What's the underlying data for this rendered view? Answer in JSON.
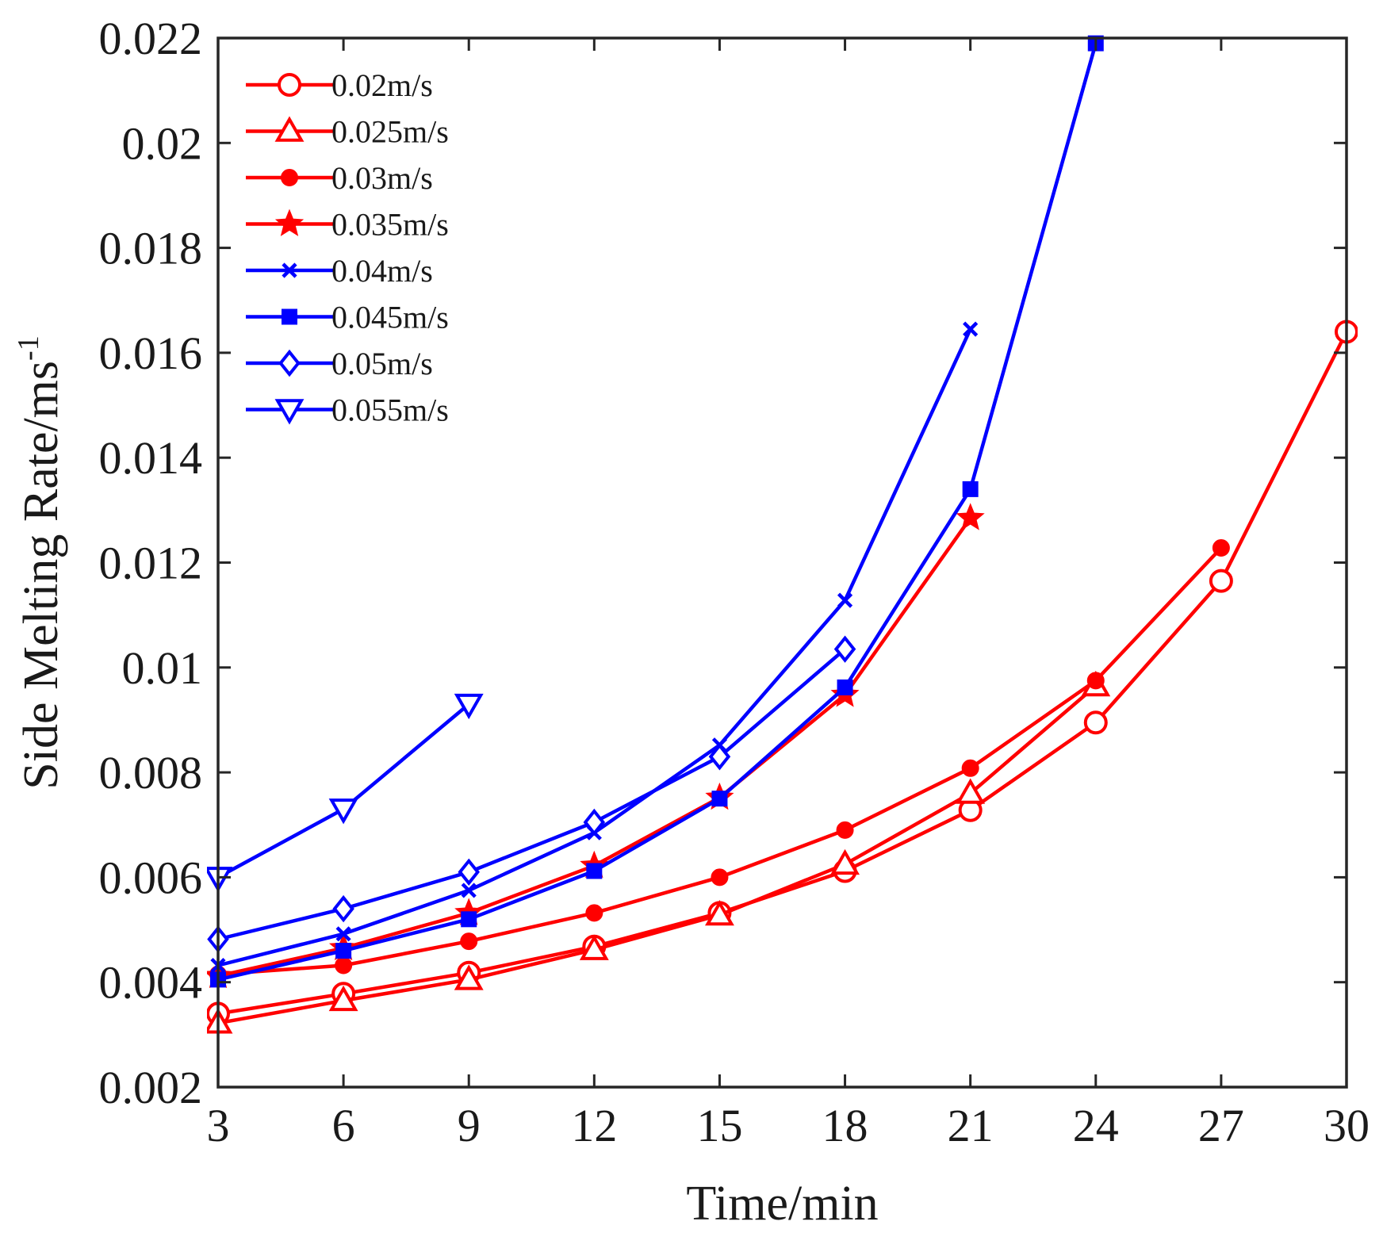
{
  "chart_data": {
    "type": "line",
    "title": "",
    "xlabel": "Time/min",
    "ylabel": "Side Melting Rate/ms",
    "ylabel_superscript": "-1",
    "xlim": [
      3,
      30
    ],
    "ylim": [
      0.002,
      0.022
    ],
    "xticks": [
      "3",
      "6",
      "9",
      "12",
      "15",
      "18",
      "21",
      "24",
      "27",
      "30"
    ],
    "xtick_values": [
      3,
      6,
      9,
      12,
      15,
      18,
      21,
      24,
      27,
      30
    ],
    "yticks": [
      "0.002",
      "0.004",
      "0.006",
      "0.008",
      "0.01",
      "0.012",
      "0.014",
      "0.016",
      "0.018",
      "0.02",
      "0.022"
    ],
    "ytick_values": [
      0.002,
      0.004,
      0.006,
      0.008,
      0.01,
      0.012,
      0.014,
      0.016,
      0.018,
      0.02,
      0.022
    ],
    "legend_position": "top-left",
    "series": [
      {
        "name": "0.02m/s",
        "color": "#ff0000",
        "marker": "circle-open",
        "x": [
          3,
          6,
          9,
          12,
          15,
          18,
          21,
          24,
          27,
          30
        ],
        "y": [
          0.0034,
          0.00378,
          0.00418,
          0.00468,
          0.00532,
          0.00612,
          0.00728,
          0.00895,
          0.01165,
          0.0164
        ]
      },
      {
        "name": "0.025m/s",
        "color": "#ff0000",
        "marker": "triangle-up-open",
        "x": [
          3,
          6,
          9,
          12,
          15,
          18,
          21,
          24
        ],
        "y": [
          0.00322,
          0.00365,
          0.00405,
          0.00462,
          0.00528,
          0.00625,
          0.0076,
          0.00965
        ]
      },
      {
        "name": "0.03m/s",
        "color": "#ff0000",
        "marker": "circle-filled",
        "x": [
          3,
          6,
          9,
          12,
          15,
          18,
          21,
          24,
          27
        ],
        "y": [
          0.00415,
          0.00432,
          0.00478,
          0.00532,
          0.006,
          0.0069,
          0.00808,
          0.00975,
          0.01228
        ]
      },
      {
        "name": "0.035m/s",
        "color": "#ff0000",
        "marker": "star-filled",
        "x": [
          3,
          6,
          9,
          12,
          15,
          18,
          21
        ],
        "y": [
          0.00412,
          0.00465,
          0.00532,
          0.00622,
          0.00752,
          0.00948,
          0.01285
        ]
      },
      {
        "name": "0.04m/s",
        "color": "#0000ff",
        "marker": "cross",
        "x": [
          3,
          6,
          9,
          12,
          15,
          18,
          21
        ],
        "y": [
          0.00432,
          0.00492,
          0.00575,
          0.00685,
          0.00852,
          0.01128,
          0.01645
        ]
      },
      {
        "name": "0.045m/s",
        "color": "#0000ff",
        "marker": "square-filled",
        "x": [
          3,
          6,
          9,
          12,
          15,
          18,
          21,
          24
        ],
        "y": [
          0.00405,
          0.0046,
          0.0052,
          0.00612,
          0.0075,
          0.00962,
          0.0134,
          0.0219
        ]
      },
      {
        "name": "0.05m/s",
        "color": "#0000ff",
        "marker": "diamond-open",
        "x": [
          3,
          6,
          9,
          12,
          15,
          18
        ],
        "y": [
          0.00482,
          0.0054,
          0.0061,
          0.00705,
          0.0083,
          0.01035
        ]
      },
      {
        "name": "0.055m/s",
        "color": "#0000ff",
        "marker": "triangle-down-open",
        "x": [
          3,
          6,
          9
        ],
        "y": [
          0.006,
          0.0073,
          0.0093
        ]
      }
    ]
  }
}
